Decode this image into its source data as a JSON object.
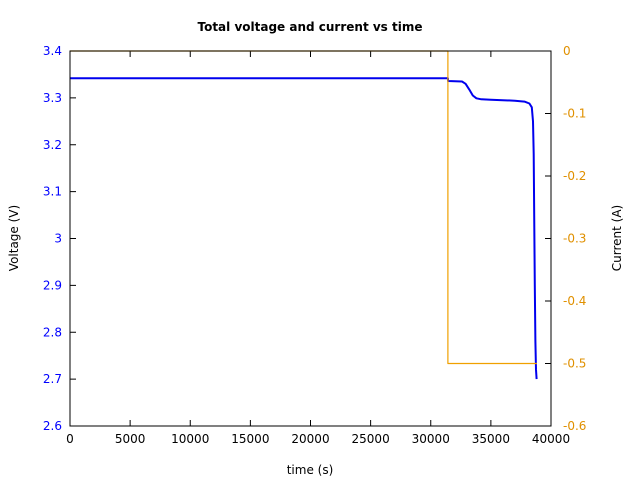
{
  "chart_data": {
    "type": "line",
    "title": "Total voltage and current vs time",
    "xlabel": "time (s)",
    "ylabel_left": "Voltage (V)",
    "ylabel_right": "Current (A)",
    "xlim": [
      0,
      40000
    ],
    "ylim_left": [
      2.6,
      3.4
    ],
    "ylim_right": [
      -0.6,
      0
    ],
    "x_ticks": [
      0,
      5000,
      10000,
      15000,
      20000,
      25000,
      30000,
      35000,
      40000
    ],
    "y_left_ticks": [
      2.6,
      2.7,
      2.8,
      2.9,
      3,
      3.1,
      3.2,
      3.3,
      3.4
    ],
    "y_left_tick_labels": [
      "2.6",
      "2.7",
      "2.8",
      "2.9",
      "3",
      "3.1",
      "3.2",
      "3.3",
      "3.4"
    ],
    "y_right_ticks": [
      -0.6,
      -0.5,
      -0.4,
      -0.3,
      -0.2,
      -0.1,
      0
    ],
    "y_right_tick_labels": [
      "-0.6",
      "-0.5",
      "-0.4",
      "-0.3",
      "-0.2",
      "-0.1",
      "0"
    ],
    "grid": false,
    "colors": {
      "voltage": "#0000ee",
      "current": "#f0a000",
      "left_axis_text": "#0000ff",
      "right_axis_text": "#e09000"
    },
    "series": [
      {
        "axis": "left",
        "x": [
          0,
          31430,
          31440,
          32600,
          32900,
          33200,
          33500,
          33800,
          34200,
          35000,
          36000,
          37000,
          37800,
          38200,
          38400,
          38500,
          38560,
          38600,
          38650,
          38700,
          38750,
          38800
        ],
        "y": [
          3.342,
          3.342,
          3.336,
          3.335,
          3.33,
          3.318,
          3.305,
          3.299,
          3.297,
          3.296,
          3.295,
          3.294,
          3.292,
          3.288,
          3.28,
          3.25,
          3.18,
          3.05,
          2.9,
          2.78,
          2.72,
          2.7
        ]
      },
      {
        "axis": "right",
        "x": [
          0,
          31430,
          31430,
          38830
        ],
        "y": [
          0,
          0,
          -0.5,
          -0.5
        ]
      }
    ]
  }
}
